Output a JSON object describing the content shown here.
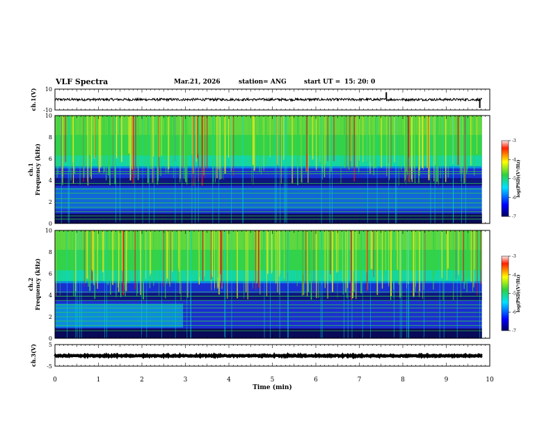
{
  "header": {
    "title": "VLF Spectra",
    "date": "Mar.21, 2026",
    "station": "station= ANG",
    "start_label": "start  UT  =",
    "start_time": "15: 20: 0"
  },
  "colors": {
    "spec_bg": "#1a2fd0",
    "spec_dark": "#0a0a5a",
    "spec_cyan": "#00d8e8",
    "spec_green": "#32d24a",
    "spec_yellow": "#e6e61e",
    "spec_red": "#e01818",
    "trace": "#000000"
  },
  "chart_data": [
    {
      "type": "line",
      "name": "ch1-waveform",
      "ylabel": "ch.1(V)",
      "ylim": [
        -10,
        10
      ],
      "yticks": [
        "10",
        "-10"
      ],
      "baseline": 0,
      "noise_amplitude": 1.2,
      "spikes": [
        {
          "x": 7.62,
          "y": 7
        },
        {
          "x": 9.77,
          "y": -8
        }
      ],
      "xlim": [
        0,
        10
      ],
      "data_end": 9.82
    },
    {
      "type": "heatmap",
      "name": "ch1-spectrogram",
      "ylabel_channel": "ch.1",
      "ylabel": "Frequency (kHz)",
      "ylim": [
        0,
        10
      ],
      "yticks": [
        "0",
        "2",
        "4",
        "6",
        "8",
        "10"
      ],
      "xlim": [
        0,
        10
      ],
      "data_end": 9.82,
      "colorbar": {
        "label": "log(PSD)(V²/Hz)",
        "range": [
          -7,
          -3
        ],
        "ticks": [
          "-3",
          "-4",
          "-5",
          "-6",
          "-7"
        ]
      }
    },
    {
      "type": "heatmap",
      "name": "ch2-spectrogram",
      "ylabel_channel": "ch.2",
      "ylabel": "Frequency (kHz)",
      "ylim": [
        0,
        10
      ],
      "yticks": [
        "0",
        "2",
        "4",
        "6",
        "8",
        "10"
      ],
      "xlim": [
        0,
        10
      ],
      "data_end": 9.82,
      "colorbar": {
        "label": "log(PSD)(V²/Hz)",
        "range": [
          -7,
          -3
        ],
        "ticks": [
          "-3",
          "-4",
          "-5",
          "-6",
          "-7"
        ]
      }
    },
    {
      "type": "line",
      "name": "ch3-waveform",
      "ylabel": "ch.3(V)",
      "ylim": [
        -5,
        5
      ],
      "yticks": [
        "5",
        "-5"
      ],
      "baseline": -0.2,
      "noise_amplitude": 0.25,
      "xlim": [
        0,
        10
      ],
      "data_end": 9.82,
      "xlabel": "Time  (min)",
      "xticks": [
        "0",
        "1",
        "2",
        "3",
        "4",
        "5",
        "6",
        "7",
        "8",
        "9",
        "10"
      ]
    }
  ]
}
